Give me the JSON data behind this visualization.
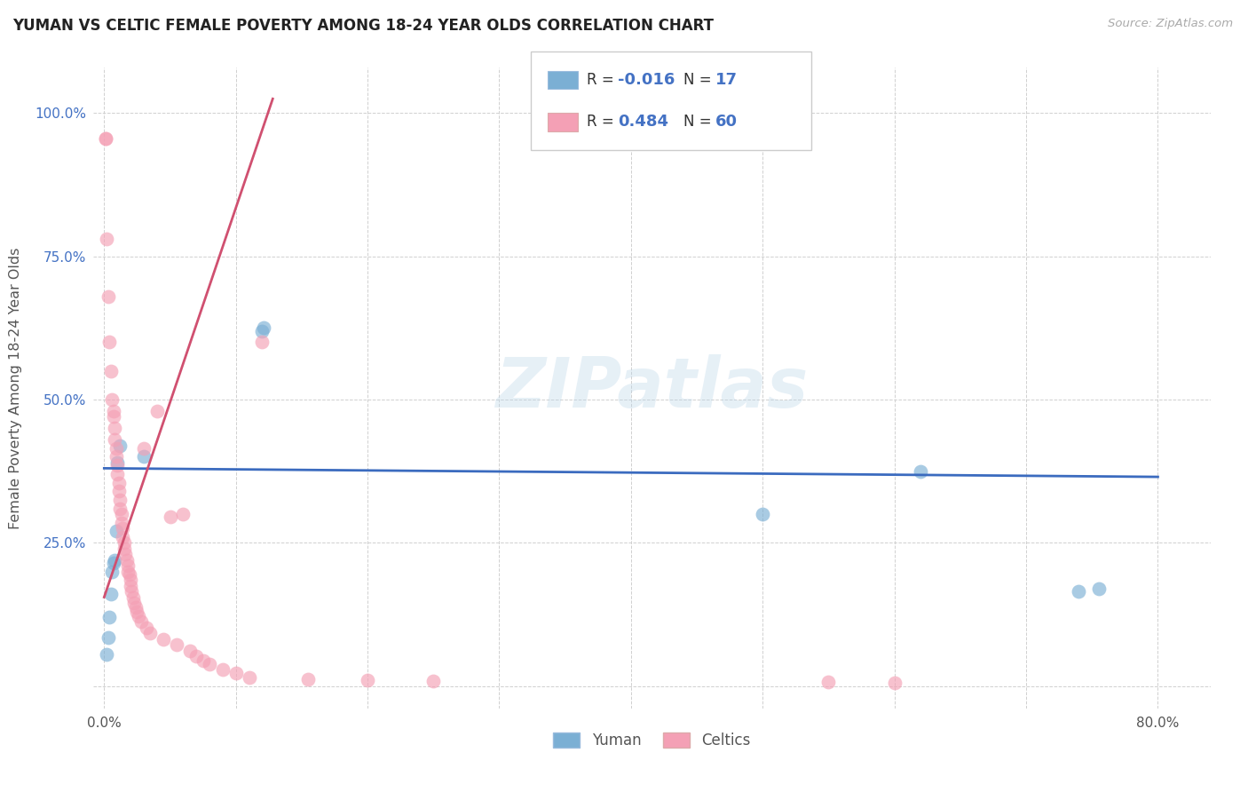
{
  "title": "YUMAN VS CELTIC FEMALE POVERTY AMONG 18-24 YEAR OLDS CORRELATION CHART",
  "source": "Source: ZipAtlas.com",
  "ylabel": "Female Poverty Among 18-24 Year Olds",
  "xlim": [
    -0.008,
    0.84
  ],
  "ylim": [
    -0.04,
    1.08
  ],
  "xticks": [
    0.0,
    0.1,
    0.2,
    0.3,
    0.4,
    0.5,
    0.6,
    0.7,
    0.8
  ],
  "xticklabels": [
    "0.0%",
    "",
    "",
    "",
    "",
    "",
    "",
    "",
    "80.0%"
  ],
  "yticks": [
    0.0,
    0.25,
    0.5,
    0.75,
    1.0
  ],
  "yticklabels": [
    "",
    "25.0%",
    "50.0%",
    "75.0%",
    "100.0%"
  ],
  "yuman_color": "#7bafd4",
  "celtics_color": "#f4a0b5",
  "yuman_trend_color": "#3b6bbf",
  "celtics_trend_color": "#d05070",
  "background_color": "#ffffff",
  "grid_color": "#d0d0d0",
  "watermark": "ZIPatlas",
  "yuman_x": [
    0.002,
    0.003,
    0.004,
    0.005,
    0.006,
    0.007,
    0.008,
    0.009,
    0.03,
    0.12,
    0.121,
    0.5,
    0.62,
    0.74,
    0.755,
    0.01,
    0.012
  ],
  "yuman_y": [
    0.055,
    0.085,
    0.12,
    0.16,
    0.2,
    0.215,
    0.22,
    0.27,
    0.4,
    0.62,
    0.625,
    0.3,
    0.375,
    0.165,
    0.17,
    0.39,
    0.42
  ],
  "celtics_x": [
    0.001,
    0.001,
    0.002,
    0.003,
    0.004,
    0.005,
    0.006,
    0.007,
    0.007,
    0.008,
    0.008,
    0.009,
    0.009,
    0.01,
    0.01,
    0.011,
    0.011,
    0.012,
    0.012,
    0.013,
    0.013,
    0.014,
    0.014,
    0.015,
    0.015,
    0.016,
    0.017,
    0.018,
    0.018,
    0.019,
    0.02,
    0.02,
    0.021,
    0.022,
    0.023,
    0.024,
    0.025,
    0.026,
    0.028,
    0.03,
    0.032,
    0.035,
    0.04,
    0.045,
    0.05,
    0.055,
    0.06,
    0.065,
    0.07,
    0.075,
    0.08,
    0.09,
    0.1,
    0.11,
    0.12,
    0.155,
    0.2,
    0.25,
    0.55,
    0.6
  ],
  "celtics_y": [
    0.955,
    0.955,
    0.78,
    0.68,
    0.6,
    0.55,
    0.5,
    0.48,
    0.47,
    0.45,
    0.43,
    0.415,
    0.4,
    0.385,
    0.37,
    0.355,
    0.34,
    0.325,
    0.31,
    0.3,
    0.285,
    0.275,
    0.26,
    0.25,
    0.24,
    0.23,
    0.22,
    0.21,
    0.2,
    0.195,
    0.185,
    0.175,
    0.165,
    0.155,
    0.145,
    0.138,
    0.13,
    0.122,
    0.112,
    0.415,
    0.102,
    0.092,
    0.48,
    0.082,
    0.295,
    0.072,
    0.3,
    0.062,
    0.052,
    0.045,
    0.038,
    0.028,
    0.022,
    0.015,
    0.6,
    0.012,
    0.01,
    0.008,
    0.007,
    0.005
  ],
  "celtics_trend_x": [
    0.0,
    0.128
  ],
  "celtics_trend_y": [
    0.155,
    1.025
  ],
  "yuman_trend_x": [
    0.0,
    0.8
  ],
  "yuman_trend_y": [
    0.38,
    0.365
  ]
}
